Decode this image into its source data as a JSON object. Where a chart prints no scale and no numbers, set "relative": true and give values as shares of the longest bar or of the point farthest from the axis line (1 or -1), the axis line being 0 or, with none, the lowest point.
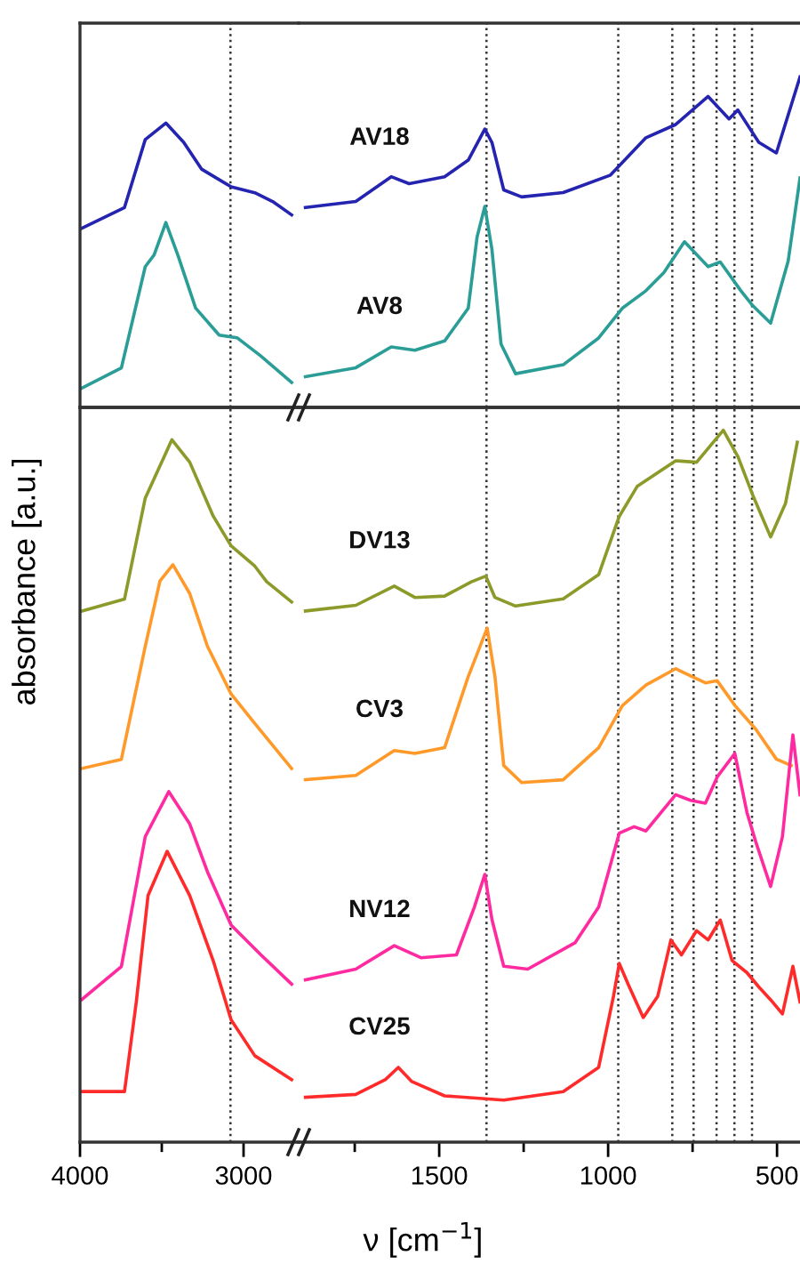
{
  "chart_data": [
    {
      "type": "line",
      "relative": true,
      "xlim": [
        4000,
        2663
      ],
      "tick_labels": false,
      "ref_lines": [
        {
          "axis": "x",
          "value": 3080,
          "color": "#333333",
          "line_style": "dotted"
        }
      ],
      "series": [
        {
          "color": "#2424b0",
          "x": [
            3989,
            3728,
            3601,
            3475,
            3366,
            3257,
            3076,
            2931,
            2822,
            2706
          ],
          "values": [
            0.63,
            0.703,
            0.942,
            1,
            0.932,
            0.838,
            0.776,
            0.755,
            0.724,
            0.677
          ]
        },
        {
          "color": "#2a9d96",
          "x": [
            3989,
            3747,
            3601,
            3547,
            3475,
            3402,
            3293,
            3149,
            3040,
            2895,
            2706
          ],
          "values": [
            0.068,
            0.139,
            0.495,
            0.536,
            0.65,
            0.536,
            0.349,
            0.254,
            0.245,
            0.181,
            0.088
          ]
        }
      ]
    },
    {
      "type": "line",
      "relative": true,
      "xlim": [
        1916,
        432
      ],
      "tick_labels": false,
      "ref_lines": [
        {
          "axis": "x",
          "value": 1360,
          "color": "#333333",
          "line_style": "dotted"
        },
        {
          "axis": "x",
          "value": 970,
          "color": "#333333",
          "line_style": "dotted"
        },
        {
          "axis": "x",
          "value": 810,
          "color": "#333333",
          "line_style": "dotted"
        },
        {
          "axis": "x",
          "value": 747,
          "color": "#333333",
          "line_style": "dotted"
        },
        {
          "axis": "x",
          "value": 679,
          "color": "#333333",
          "line_style": "dotted"
        },
        {
          "axis": "x",
          "value": 626,
          "color": "#333333",
          "line_style": "dotted"
        },
        {
          "axis": "x",
          "value": 574,
          "color": "#333333",
          "line_style": "dotted"
        }
      ],
      "series": [
        {
          "name": "AV18",
          "color": "#2424b0",
          "x": [
            1896,
            1747,
            1642,
            1589,
            1484,
            1414,
            1365,
            1344,
            1309,
            1256,
            1133,
            993,
            888,
            800,
            704,
            642,
            616,
            554,
            502,
            432
          ],
          "values": [
            0.605,
            0.623,
            0.698,
            0.677,
            0.698,
            0.748,
            0.842,
            0.802,
            0.658,
            0.637,
            0.65,
            0.703,
            0.816,
            0.856,
            0.941,
            0.873,
            0.9,
            0.802,
            0.77,
            1
          ]
        },
        {
          "name": "AV8",
          "color": "#2a9d96",
          "x": [
            1896,
            1747,
            1642,
            1572,
            1484,
            1414,
            1388,
            1365,
            1344,
            1317,
            1274,
            1133,
            1028,
            958,
            888,
            835,
            774,
            704,
            668,
            607,
            572,
            519,
            467,
            432
          ],
          "values": [
            0.093,
            0.12,
            0.183,
            0.173,
            0.201,
            0.3,
            0.515,
            0.608,
            0.479,
            0.192,
            0.102,
            0.129,
            0.21,
            0.3,
            0.353,
            0.408,
            0.501,
            0.426,
            0.44,
            0.353,
            0.308,
            0.255,
            0.443,
            0.694
          ]
        }
      ]
    },
    {
      "type": "line",
      "relative": true,
      "xlim": [
        4000,
        2663
      ],
      "tick_labels": "x",
      "ylabel": "absorbance [a.u.]",
      "xticks": [
        4000,
        {
          "value": 3500,
          "label": null
        },
        3000
      ],
      "ref_lines": [
        {
          "axis": "x",
          "value": 3080,
          "color": "#333333",
          "line_style": "dotted"
        }
      ],
      "series": [
        {
          "color": "#8c9a2a",
          "x": [
            3989,
            3728,
            3601,
            3438,
            3329,
            3185,
            3076,
            2931,
            2859,
            2706
          ],
          "values": [
            0.756,
            0.773,
            0.917,
            1,
            0.968,
            0.891,
            0.849,
            0.82,
            0.798,
            0.769
          ]
        },
        {
          "color": "#ff9a2a",
          "x": [
            3989,
            3747,
            3601,
            3511,
            3432,
            3329,
            3221,
            3076,
            2931,
            2706
          ],
          "values": [
            0.532,
            0.545,
            0.706,
            0.799,
            0.822,
            0.781,
            0.706,
            0.638,
            0.596,
            0.532
          ]
        },
        {
          "color": "#ff2aa0",
          "x": [
            3989,
            3747,
            3601,
            3457,
            3329,
            3221,
            3076,
            2895,
            2706
          ],
          "values": [
            0.203,
            0.25,
            0.435,
            0.499,
            0.453,
            0.385,
            0.309,
            0.267,
            0.225
          ]
        },
        {
          "color": "#ff2a2a",
          "x": [
            3989,
            3728,
            3656,
            3584,
            3467,
            3329,
            3185,
            3076,
            2931,
            2706
          ],
          "values": [
            0.072,
            0.072,
            0.199,
            0.351,
            0.414,
            0.351,
            0.258,
            0.174,
            0.123,
            0.089
          ]
        }
      ]
    },
    {
      "type": "line",
      "relative": true,
      "xlim": [
        1916,
        432
      ],
      "tick_labels": "x",
      "xlabel": "ν [cm$^{−1}$]",
      "xticks": [
        {
          "value": 1750,
          "label": null
        },
        1500,
        {
          "value": 1250,
          "label": null
        },
        1000,
        {
          "value": 750,
          "label": null
        },
        500
      ],
      "ref_lines": [
        {
          "axis": "x",
          "value": 1360,
          "color": "#333333",
          "line_style": "dotted"
        },
        {
          "axis": "x",
          "value": 970,
          "color": "#333333",
          "line_style": "dotted"
        },
        {
          "axis": "x",
          "value": 810,
          "color": "#333333",
          "line_style": "dotted"
        },
        {
          "axis": "x",
          "value": 747,
          "color": "#333333",
          "line_style": "dotted"
        },
        {
          "axis": "x",
          "value": 679,
          "color": "#333333",
          "line_style": "dotted"
        },
        {
          "axis": "x",
          "value": 626,
          "color": "#333333",
          "line_style": "dotted"
        },
        {
          "axis": "x",
          "value": 574,
          "color": "#333333",
          "line_style": "dotted"
        }
      ],
      "series": [
        {
          "name": "DV13",
          "color": "#8c9a2a",
          "x": [
            1896,
            1747,
            1633,
            1572,
            1484,
            1405,
            1362,
            1335,
            1274,
            1133,
            1028,
            967,
            914,
            800,
            738,
            659,
            616,
            572,
            519,
            475,
            440
          ],
          "values": [
            0.746,
            0.754,
            0.781,
            0.765,
            0.767,
            0.787,
            0.795,
            0.765,
            0.753,
            0.763,
            0.797,
            0.879,
            0.921,
            0.957,
            0.955,
            1,
            0.963,
            0.909,
            0.85,
            0.897,
            0.983
          ]
        },
        {
          "name": "CV3",
          "color": "#ff9a2a",
          "x": [
            1896,
            1747,
            1633,
            1572,
            1484,
            1414,
            1358,
            1335,
            1309,
            1256,
            1133,
            1028,
            958,
            888,
            800,
            712,
            677,
            624,
            563,
            502,
            458
          ],
          "values": [
            0.509,
            0.515,
            0.55,
            0.546,
            0.554,
            0.654,
            0.722,
            0.654,
            0.529,
            0.505,
            0.509,
            0.554,
            0.613,
            0.642,
            0.665,
            0.645,
            0.648,
            0.613,
            0.58,
            0.538,
            0.529
          ]
        },
        {
          "name": "NV12",
          "color": "#ff2aa0",
          "x": [
            1896,
            1747,
            1633,
            1554,
            1449,
            1396,
            1365,
            1344,
            1309,
            1238,
            1098,
            1028,
            967,
            923,
            888,
            800,
            756,
            712,
            677,
            625,
            589,
            563,
            519,
            484,
            453,
            432
          ],
          "values": [
            0.228,
            0.243,
            0.276,
            0.259,
            0.263,
            0.33,
            0.376,
            0.313,
            0.247,
            0.243,
            0.28,
            0.33,
            0.434,
            0.443,
            0.437,
            0.488,
            0.48,
            0.476,
            0.513,
            0.546,
            0.463,
            0.422,
            0.359,
            0.429,
            0.572,
            0.488
          ]
        },
        {
          "name": "CV25",
          "color": "#ff2a2a",
          "x": [
            1896,
            1747,
            1659,
            1621,
            1581,
            1484,
            1309,
            1133,
            1028,
            984,
            967,
            941,
            896,
            853,
            814,
            783,
            738,
            704,
            668,
            633,
            589,
            554,
            519,
            484,
            453,
            432
          ],
          "values": [
            0.063,
            0.067,
            0.088,
            0.105,
            0.085,
            0.065,
            0.059,
            0.071,
            0.105,
            0.205,
            0.251,
            0.222,
            0.175,
            0.205,
            0.284,
            0.263,
            0.297,
            0.284,
            0.312,
            0.255,
            0.238,
            0.218,
            0.2,
            0.18,
            0.247,
            0.197
          ]
        }
      ]
    }
  ]
}
